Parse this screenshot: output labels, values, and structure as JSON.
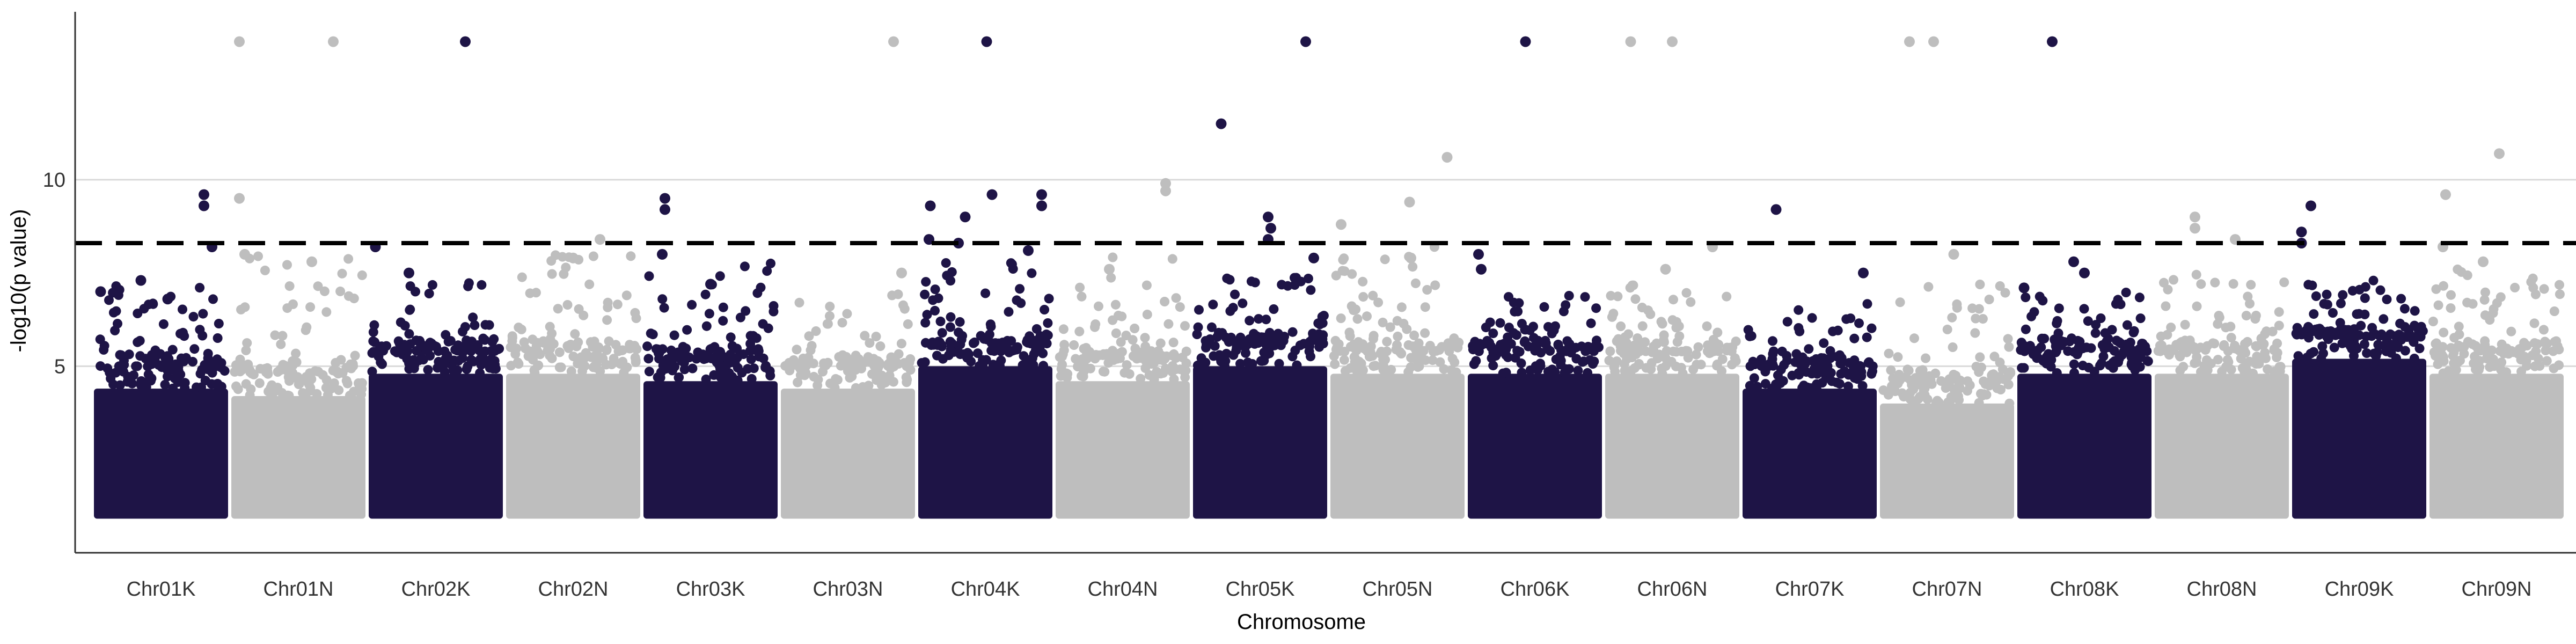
{
  "chart_data": {
    "type": "scatter",
    "subtype": "manhattan",
    "title": "",
    "xlabel": "Chromosome",
    "ylabel": "-log10(p value)",
    "ylim": [
      0,
      14.5
    ],
    "yticks": [
      5,
      10
    ],
    "grid": "horizontal major only",
    "threshold": 8.3,
    "point_floor": 1.0,
    "colors": {
      "odd": "#1e1446",
      "even": "#bebebe",
      "threshold": "#000000",
      "grid": "#d9d9d9",
      "axis": "#333333"
    },
    "categories": [
      "Chr01K",
      "Chr01N",
      "Chr02K",
      "Chr02N",
      "Chr03K",
      "Chr03N",
      "Chr04K",
      "Chr04N",
      "Chr05K",
      "Chr05N",
      "Chr06K",
      "Chr06N",
      "Chr07K",
      "Chr07N",
      "Chr08K",
      "Chr08N",
      "Chr09K",
      "Chr09N"
    ],
    "chromosomes": [
      {
        "name": "Chr01K",
        "dense_top": 4.4,
        "fringe_max": 7.2,
        "top_points": [
          {
            "x": 0.82,
            "y": 9.6
          },
          {
            "x": 0.82,
            "y": 9.3
          },
          {
            "x": 0.88,
            "y": 8.2
          },
          {
            "x": 0.05,
            "y": 7.0
          },
          {
            "x": 0.35,
            "y": 7.3
          },
          {
            "x": 0.55,
            "y": 6.8
          }
        ]
      },
      {
        "name": "Chr01N",
        "dense_top": 4.2,
        "fringe_max": 8.0,
        "top_points": [
          {
            "x": 0.06,
            "y": 13.7
          },
          {
            "x": 0.76,
            "y": 13.7
          },
          {
            "x": 0.06,
            "y": 9.5
          },
          {
            "x": 0.1,
            "y": 8.0
          },
          {
            "x": 0.6,
            "y": 7.8
          }
        ]
      },
      {
        "name": "Chr02K",
        "dense_top": 4.8,
        "fringe_max": 7.3,
        "top_points": [
          {
            "x": 0.72,
            "y": 13.7
          },
          {
            "x": 0.05,
            "y": 8.2
          },
          {
            "x": 0.3,
            "y": 7.5
          }
        ]
      },
      {
        "name": "Chr02N",
        "dense_top": 4.8,
        "fringe_max": 8.0,
        "top_points": [
          {
            "x": 0.7,
            "y": 8.4
          },
          {
            "x": 0.5,
            "y": 7.9
          }
        ]
      },
      {
        "name": "Chr03K",
        "dense_top": 4.6,
        "fringe_max": 7.8,
        "top_points": [
          {
            "x": 0.16,
            "y": 9.5
          },
          {
            "x": 0.16,
            "y": 9.2
          },
          {
            "x": 0.14,
            "y": 8.0
          },
          {
            "x": 0.5,
            "y": 7.2
          }
        ]
      },
      {
        "name": "Chr03N",
        "dense_top": 4.4,
        "fringe_max": 7.0,
        "top_points": [
          {
            "x": 0.84,
            "y": 13.7
          },
          {
            "x": 0.9,
            "y": 7.5
          }
        ]
      },
      {
        "name": "Chr04K",
        "dense_top": 5.0,
        "fringe_max": 7.8,
        "top_points": [
          {
            "x": 0.51,
            "y": 13.7
          },
          {
            "x": 0.09,
            "y": 9.3
          },
          {
            "x": 0.55,
            "y": 9.6
          },
          {
            "x": 0.92,
            "y": 9.6
          },
          {
            "x": 0.92,
            "y": 9.3
          },
          {
            "x": 0.35,
            "y": 9.0
          },
          {
            "x": 0.08,
            "y": 8.4
          },
          {
            "x": 0.3,
            "y": 8.3
          },
          {
            "x": 0.82,
            "y": 8.1
          }
        ]
      },
      {
        "name": "Chr04N",
        "dense_top": 4.6,
        "fringe_max": 8.0,
        "top_points": [
          {
            "x": 0.82,
            "y": 9.9
          },
          {
            "x": 0.82,
            "y": 9.7
          },
          {
            "x": 0.4,
            "y": 7.6
          }
        ]
      },
      {
        "name": "Chr05K",
        "dense_top": 5.0,
        "fringe_max": 7.6,
        "top_points": [
          {
            "x": 0.21,
            "y": 11.5
          },
          {
            "x": 0.84,
            "y": 13.7
          },
          {
            "x": 0.56,
            "y": 9.0
          },
          {
            "x": 0.58,
            "y": 8.7
          },
          {
            "x": 0.56,
            "y": 8.4
          },
          {
            "x": 0.9,
            "y": 7.9
          }
        ]
      },
      {
        "name": "Chr05N",
        "dense_top": 4.8,
        "fringe_max": 8.2,
        "top_points": [
          {
            "x": 0.87,
            "y": 10.6
          },
          {
            "x": 0.59,
            "y": 9.4
          },
          {
            "x": 0.08,
            "y": 8.8
          },
          {
            "x": 0.6,
            "y": 7.9
          }
        ]
      },
      {
        "name": "Chr06K",
        "dense_top": 4.8,
        "fringe_max": 7.0,
        "top_points": [
          {
            "x": 0.43,
            "y": 13.7
          },
          {
            "x": 0.08,
            "y": 8.0
          },
          {
            "x": 0.1,
            "y": 7.6
          }
        ]
      },
      {
        "name": "Chr06N",
        "dense_top": 4.8,
        "fringe_max": 7.5,
        "top_points": [
          {
            "x": 0.19,
            "y": 13.7
          },
          {
            "x": 0.5,
            "y": 13.7
          },
          {
            "x": 0.8,
            "y": 8.2
          },
          {
            "x": 0.45,
            "y": 7.6
          }
        ]
      },
      {
        "name": "Chr07K",
        "dense_top": 4.4,
        "fringe_max": 7.0,
        "top_points": [
          {
            "x": 0.25,
            "y": 9.2
          },
          {
            "x": 0.9,
            "y": 7.5
          }
        ]
      },
      {
        "name": "Chr07N",
        "dense_top": 4.0,
        "fringe_max": 7.3,
        "top_points": [
          {
            "x": 0.22,
            "y": 13.7
          },
          {
            "x": 0.4,
            "y": 13.7
          },
          {
            "x": 0.55,
            "y": 8.0
          }
        ]
      },
      {
        "name": "Chr08K",
        "dense_top": 4.8,
        "fringe_max": 7.0,
        "top_points": [
          {
            "x": 0.26,
            "y": 13.7
          },
          {
            "x": 0.42,
            "y": 7.8
          },
          {
            "x": 0.5,
            "y": 7.5
          },
          {
            "x": 0.05,
            "y": 7.1
          }
        ]
      },
      {
        "name": "Chr08N",
        "dense_top": 4.8,
        "fringe_max": 7.5,
        "top_points": [
          {
            "x": 0.3,
            "y": 9.0
          },
          {
            "x": 0.3,
            "y": 8.7
          },
          {
            "x": 0.6,
            "y": 8.4
          }
        ]
      },
      {
        "name": "Chr09K",
        "dense_top": 5.2,
        "fringe_max": 7.3,
        "top_points": [
          {
            "x": 0.07,
            "y": 8.6
          },
          {
            "x": 0.07,
            "y": 8.3
          },
          {
            "x": 0.14,
            "y": 9.3
          }
        ]
      },
      {
        "name": "Chr09N",
        "dense_top": 4.8,
        "fringe_max": 7.6,
        "top_points": [
          {
            "x": 0.52,
            "y": 10.7
          },
          {
            "x": 0.12,
            "y": 9.6
          },
          {
            "x": 0.1,
            "y": 8.2
          },
          {
            "x": 0.4,
            "y": 7.8
          }
        ]
      }
    ]
  }
}
